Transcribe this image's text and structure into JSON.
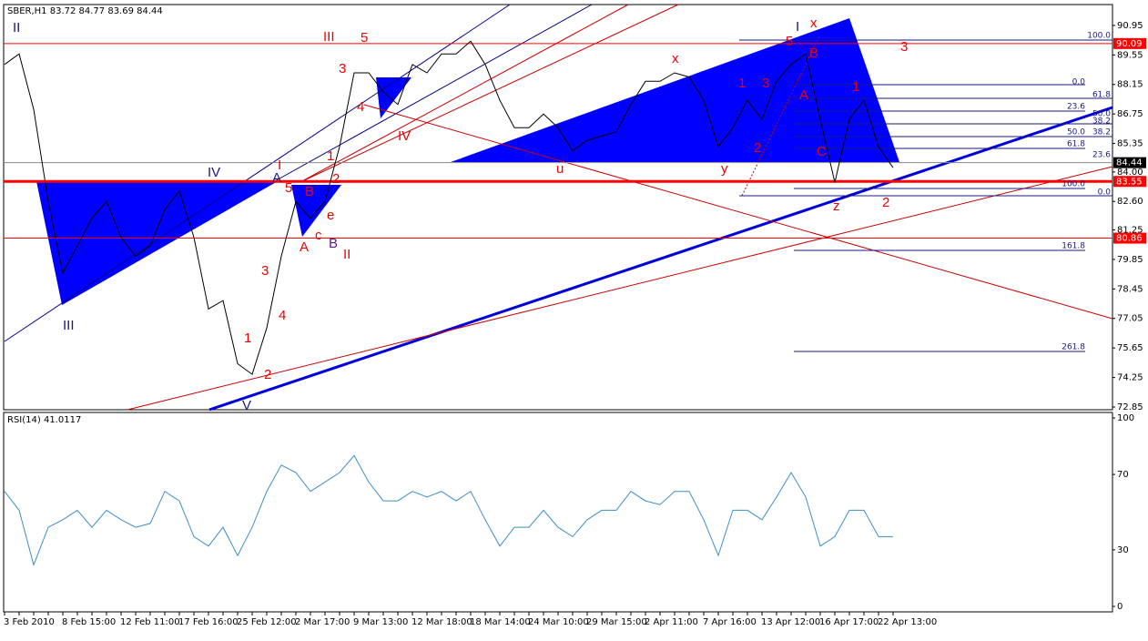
{
  "chart_data": [
    {
      "type": "line",
      "title": "SBER,H1 83.72 84.77 83.69 84.44",
      "color": "#000000",
      "categories": [
        "3 Feb 2010",
        null,
        null,
        null,
        "8 Feb 15:00",
        null,
        null,
        null,
        "12 Feb 11:00",
        null,
        null,
        null,
        "17 Feb 16:00",
        null,
        null,
        null,
        "25 Feb 12:00",
        null,
        null,
        null,
        "2 Mar 17:00",
        null,
        null,
        null,
        "9 Mar 13:00",
        null,
        null,
        null,
        "12 Mar 18:00",
        null,
        null,
        null,
        "18 Mar 14:00",
        null,
        null,
        null,
        "24 Mar 10:00",
        null,
        null,
        null,
        "29 Mar 15:00",
        null,
        null,
        null,
        "2 Apr 11:00",
        null,
        null,
        null,
        "7 Apr 16:00",
        null,
        null,
        null,
        "13 Apr 12:00",
        null,
        null,
        null,
        "16 Apr 17:00",
        null,
        null,
        null,
        "22 Apr 13:00",
        null
      ],
      "values": [
        89.1,
        89.6,
        86.97,
        82.6,
        79.2,
        80.5,
        81.8,
        82.6,
        80.9,
        80.0,
        80.5,
        82.2,
        83.1,
        80.9,
        77.5,
        77.9,
        74.9,
        74.4,
        76.6,
        80.0,
        82.6,
        81.8,
        82.6,
        85.2,
        88.7,
        88.7,
        87.8,
        87.2,
        89.1,
        88.7,
        89.6,
        89.6,
        90.2,
        89.1,
        87.4,
        86.1,
        86.1,
        86.75,
        86.1,
        85.0,
        85.5,
        85.7,
        85.9,
        87.2,
        88.3,
        88.3,
        88.7,
        88.5,
        87.4,
        85.2,
        86.1,
        87.4,
        86.5,
        88.3,
        89.1,
        89.6,
        86.5,
        83.5,
        86.5,
        87.4,
        85.2,
        84.2
      ],
      "ylim": [
        72.72,
        91.94
      ],
      "yticks": [
        90.95,
        89.55,
        88.15,
        86.75,
        85.35,
        {
          "value": 84,
          "label": "84.00"
        },
        {
          "value": 82.6,
          "label": "82.60"
        },
        81.25,
        79.85,
        78.45,
        77.05,
        75.65,
        74.25,
        72.85
      ],
      "levels": [
        {
          "value": 90.09,
          "color": "#ff0000"
        },
        {
          "value": 84.44,
          "color": "#000000"
        },
        {
          "value": 83.55,
          "color": "#ff0000"
        },
        {
          "value": 80.86,
          "color": "#ff0000"
        }
      ],
      "annotations": [
        "II",
        "III",
        "5",
        "3",
        "4",
        "IV",
        "I",
        "IV",
        "A",
        "5",
        "B",
        "e",
        "c",
        "A",
        "B",
        "II",
        "3",
        "4",
        "1",
        "2",
        "V",
        "III",
        "1",
        "2",
        "x",
        "1",
        "3",
        "2",
        "u",
        "y",
        "I",
        "x",
        "5",
        "B",
        "A",
        "C",
        "1",
        "z",
        "2",
        "3",
        "100.0",
        "0.0",
        "61.8",
        "23.6",
        "50.0",
        "38.2",
        "50.0",
        "38.2",
        "61.8",
        "23.6",
        "100.0",
        "0.0",
        "161.8",
        "261.8"
      ]
    },
    {
      "type": "line",
      "title": "RSI(14) 41.0117",
      "color": "#3d8ec9",
      "values": [
        61,
        51,
        22,
        42,
        46,
        51,
        42,
        51,
        46,
        42,
        44,
        61,
        56,
        37,
        32,
        42,
        27,
        42,
        61,
        75,
        71,
        61,
        66,
        71,
        80,
        66,
        56,
        56,
        61,
        58,
        61,
        56,
        61,
        46,
        32,
        42,
        42,
        51,
        42,
        37,
        46,
        51,
        51,
        61,
        56,
        54,
        61,
        61,
        46,
        27,
        51,
        51,
        46,
        58,
        71,
        58,
        32,
        37,
        51,
        51,
        37,
        37
      ],
      "ylim": [
        -2.9,
        102.9
      ],
      "yticks": [
        100,
        70,
        30,
        0
      ]
    }
  ]
}
